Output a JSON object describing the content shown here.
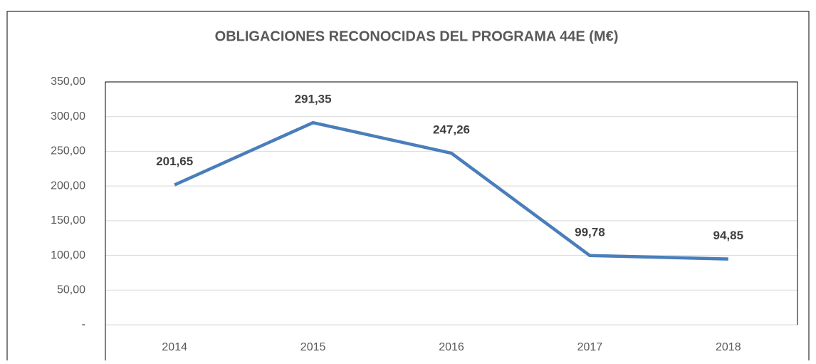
{
  "chart_data": {
    "type": "line",
    "title": "OBLIGACIONES RECONOCIDAS DEL PROGRAMA 44E (M€)",
    "categories": [
      "2014",
      "2015",
      "2016",
      "2017",
      "2018"
    ],
    "series": [
      {
        "color": "#4a7ebb",
        "values": [
          201.65,
          291.35,
          247.26,
          99.78,
          94.85
        ],
        "value_labels": [
          "201,65",
          "291,35",
          "247,26",
          "99,78",
          "94,85"
        ]
      }
    ],
    "ylim": [
      0,
      350
    ],
    "yticks": [
      {
        "value": 0,
        "label": "-"
      },
      {
        "value": 50,
        "label": "50,00"
      },
      {
        "value": 100,
        "label": "100,00"
      },
      {
        "value": 150,
        "label": "150,00"
      },
      {
        "value": 200,
        "label": "200,00"
      },
      {
        "value": 250,
        "label": "250,00"
      },
      {
        "value": 300,
        "label": "300,00"
      },
      {
        "value": 350,
        "label": "350,00"
      }
    ],
    "grid": true
  }
}
